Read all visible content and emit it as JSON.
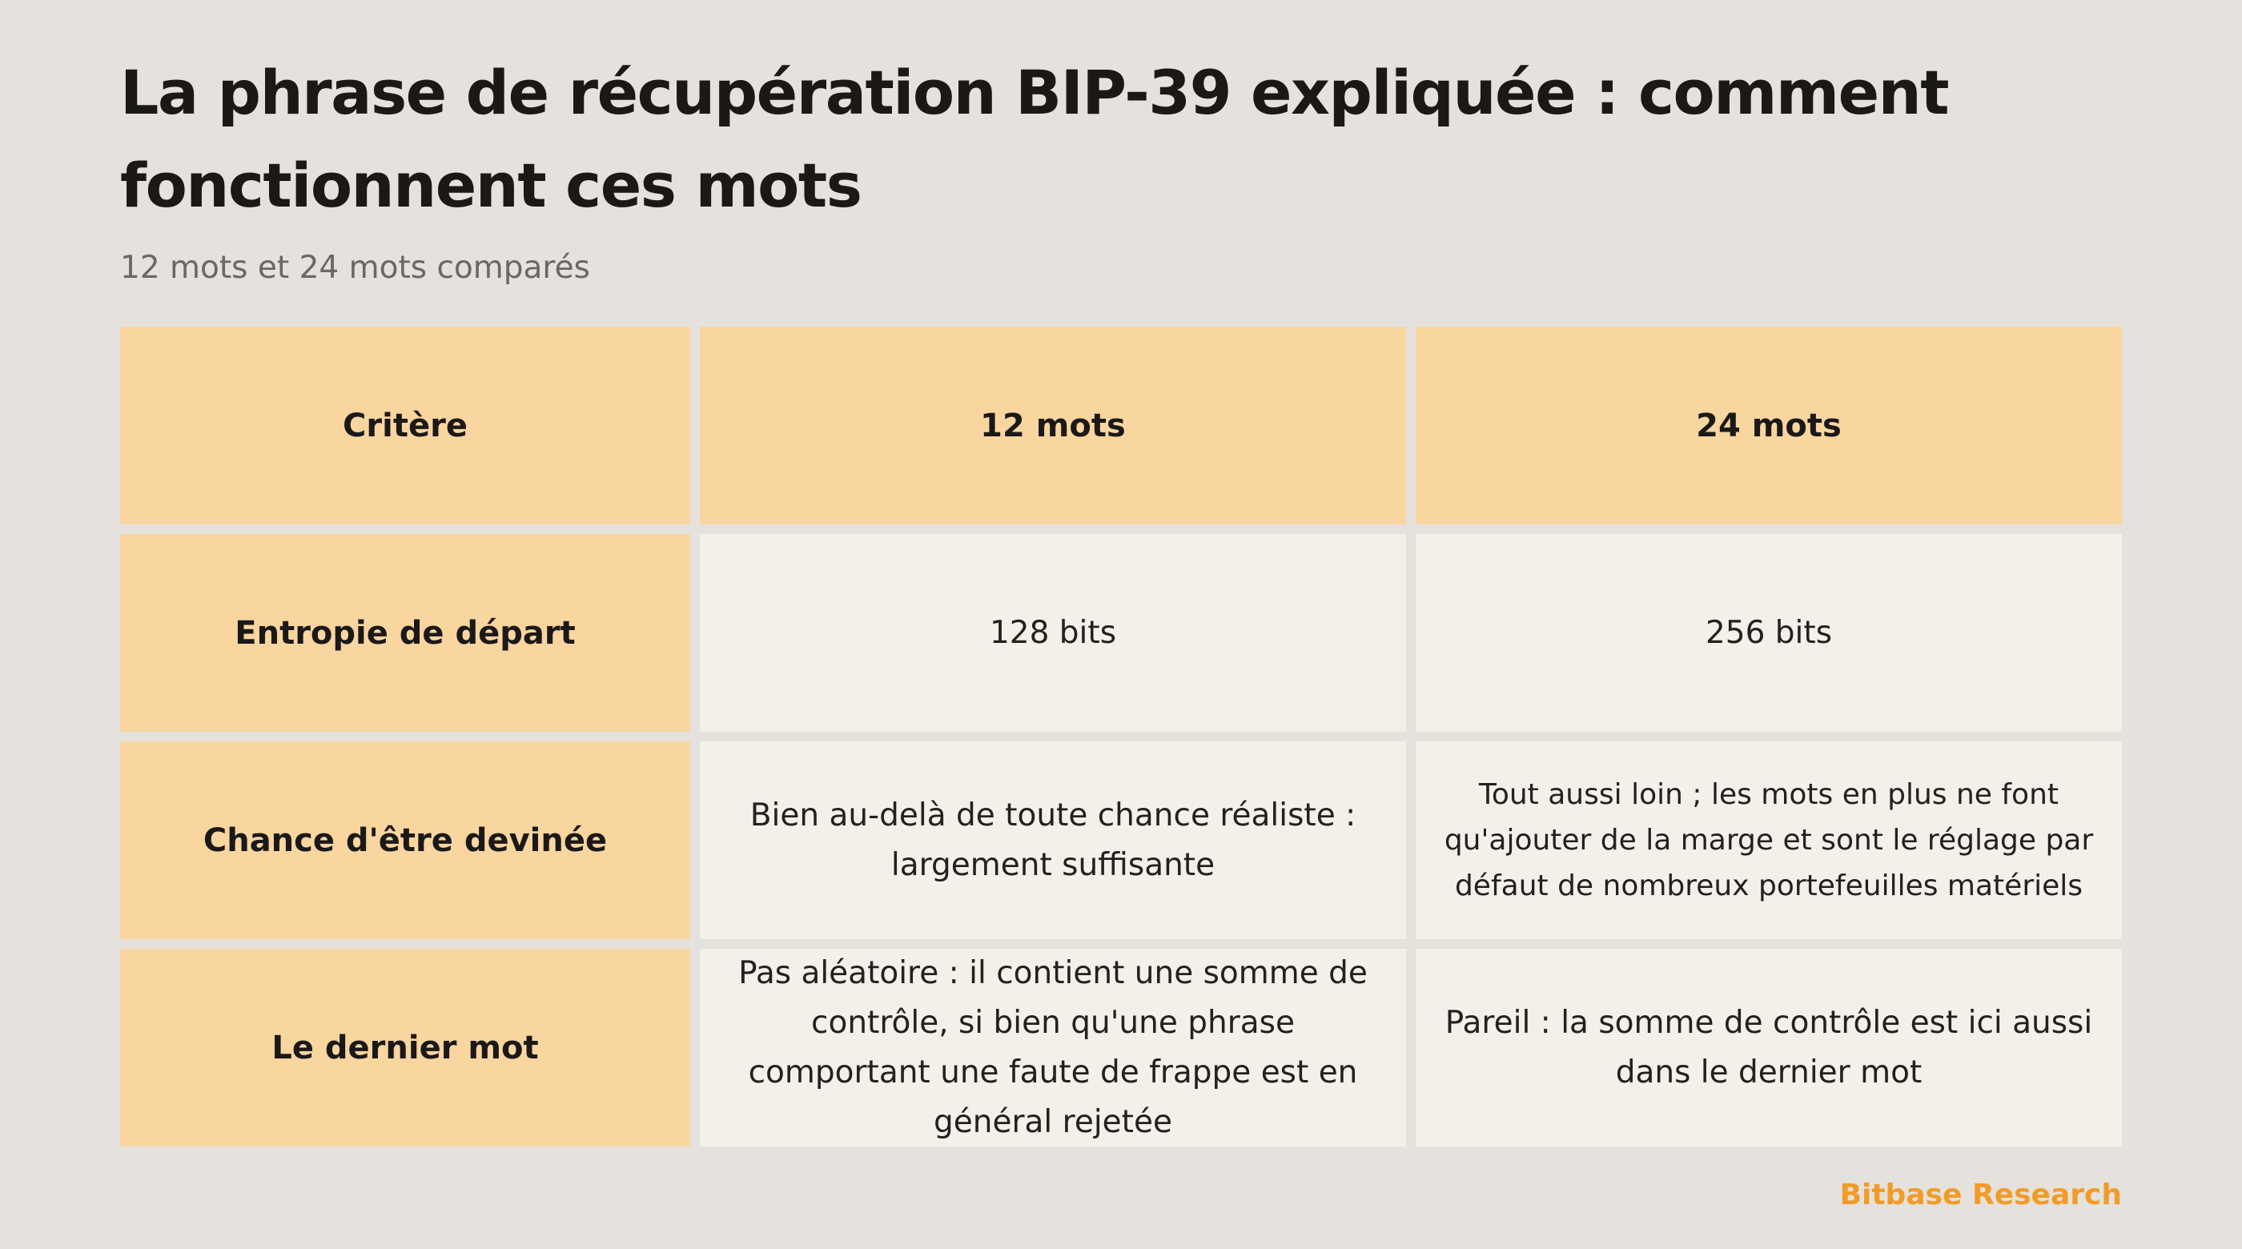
{
  "title": "La phrase de récupération BIP-39 expliquée : comment fonctionnent ces mots",
  "subtitle": "12 mots et 24 mots comparés",
  "table": {
    "headers": [
      "Critère",
      "12 mots",
      "24 mots"
    ],
    "rows": [
      {
        "criterion": "Entropie de départ",
        "twelve": "128 bits",
        "twentyfour": "256 bits"
      },
      {
        "criterion": "Chance d'être devinée",
        "twelve": "Bien au-delà de toute chance réaliste : largement suffisante",
        "twentyfour": "Tout aussi loin ; les mots en plus ne font qu'ajouter de la marge et sont le réglage par défaut de nombreux portefeuilles matériels"
      },
      {
        "criterion": "Le dernier mot",
        "twelve": "Pas aléatoire : il contient une somme de contrôle, si bien qu'une phrase comportant une faute de frappe est en général rejetée",
        "twentyfour": "Pareil : la somme de contrôle est ici aussi dans le dernier mot"
      }
    ]
  },
  "brand": "Bitbase Research",
  "colors": {
    "background": "#e5e1dc",
    "header_fill": "#f9d5a0",
    "cell_fill": "#f3f0ea",
    "brand_accent": "#f29b26"
  }
}
